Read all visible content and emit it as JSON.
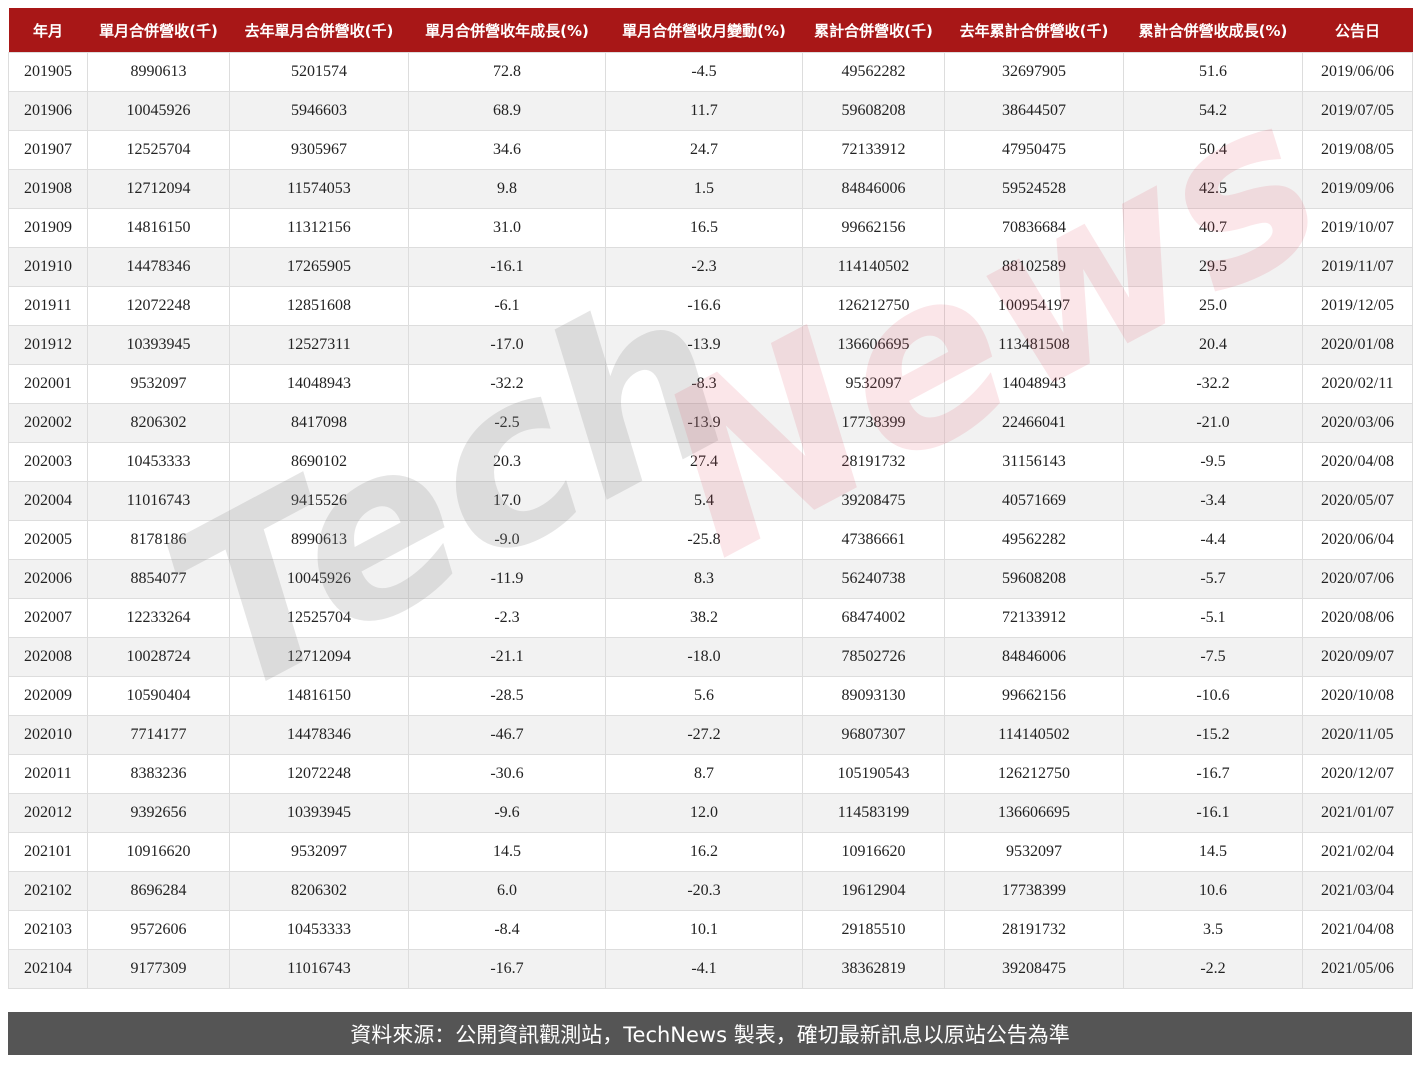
{
  "headers": [
    "年月",
    "單月合併營收(千)",
    "去年單月合併營收(千)",
    "單月合併營收年成長(%)",
    "單月合併營收月變動(%)",
    "累計合併營收(千)",
    "去年累計合併營收(千)",
    "累計合併營收成長(%)",
    "公告日"
  ],
  "rows": [
    [
      "201905",
      "8990613",
      "5201574",
      "72.8",
      "-4.5",
      "49562282",
      "32697905",
      "51.6",
      "2019/06/06"
    ],
    [
      "201906",
      "10045926",
      "5946603",
      "68.9",
      "11.7",
      "59608208",
      "38644507",
      "54.2",
      "2019/07/05"
    ],
    [
      "201907",
      "12525704",
      "9305967",
      "34.6",
      "24.7",
      "72133912",
      "47950475",
      "50.4",
      "2019/08/05"
    ],
    [
      "201908",
      "12712094",
      "11574053",
      "9.8",
      "1.5",
      "84846006",
      "59524528",
      "42.5",
      "2019/09/06"
    ],
    [
      "201909",
      "14816150",
      "11312156",
      "31.0",
      "16.5",
      "99662156",
      "70836684",
      "40.7",
      "2019/10/07"
    ],
    [
      "201910",
      "14478346",
      "17265905",
      "-16.1",
      "-2.3",
      "114140502",
      "88102589",
      "29.5",
      "2019/11/07"
    ],
    [
      "201911",
      "12072248",
      "12851608",
      "-6.1",
      "-16.6",
      "126212750",
      "100954197",
      "25.0",
      "2019/12/05"
    ],
    [
      "201912",
      "10393945",
      "12527311",
      "-17.0",
      "-13.9",
      "136606695",
      "113481508",
      "20.4",
      "2020/01/08"
    ],
    [
      "202001",
      "9532097",
      "14048943",
      "-32.2",
      "-8.3",
      "9532097",
      "14048943",
      "-32.2",
      "2020/02/11"
    ],
    [
      "202002",
      "8206302",
      "8417098",
      "-2.5",
      "-13.9",
      "17738399",
      "22466041",
      "-21.0",
      "2020/03/06"
    ],
    [
      "202003",
      "10453333",
      "8690102",
      "20.3",
      "27.4",
      "28191732",
      "31156143",
      "-9.5",
      "2020/04/08"
    ],
    [
      "202004",
      "11016743",
      "9415526",
      "17.0",
      "5.4",
      "39208475",
      "40571669",
      "-3.4",
      "2020/05/07"
    ],
    [
      "202005",
      "8178186",
      "8990613",
      "-9.0",
      "-25.8",
      "47386661",
      "49562282",
      "-4.4",
      "2020/06/04"
    ],
    [
      "202006",
      "8854077",
      "10045926",
      "-11.9",
      "8.3",
      "56240738",
      "59608208",
      "-5.7",
      "2020/07/06"
    ],
    [
      "202007",
      "12233264",
      "12525704",
      "-2.3",
      "38.2",
      "68474002",
      "72133912",
      "-5.1",
      "2020/08/06"
    ],
    [
      "202008",
      "10028724",
      "12712094",
      "-21.1",
      "-18.0",
      "78502726",
      "84846006",
      "-7.5",
      "2020/09/07"
    ],
    [
      "202009",
      "10590404",
      "14816150",
      "-28.5",
      "5.6",
      "89093130",
      "99662156",
      "-10.6",
      "2020/10/08"
    ],
    [
      "202010",
      "7714177",
      "14478346",
      "-46.7",
      "-27.2",
      "96807307",
      "114140502",
      "-15.2",
      "2020/11/05"
    ],
    [
      "202011",
      "8383236",
      "12072248",
      "-30.6",
      "8.7",
      "105190543",
      "126212750",
      "-16.7",
      "2020/12/07"
    ],
    [
      "202012",
      "9392656",
      "10393945",
      "-9.6",
      "12.0",
      "114583199",
      "136606695",
      "-16.1",
      "2021/01/07"
    ],
    [
      "202101",
      "10916620",
      "9532097",
      "14.5",
      "16.2",
      "10916620",
      "9532097",
      "14.5",
      "2021/02/04"
    ],
    [
      "202102",
      "8696284",
      "8206302",
      "6.0",
      "-20.3",
      "19612904",
      "17738399",
      "10.6",
      "2021/03/04"
    ],
    [
      "202103",
      "9572606",
      "10453333",
      "-8.4",
      "10.1",
      "29185510",
      "28191732",
      "3.5",
      "2021/04/08"
    ],
    [
      "202104",
      "9177309",
      "11016743",
      "-16.7",
      "-4.1",
      "38362819",
      "39208475",
      "-2.2",
      "2021/05/06"
    ]
  ],
  "watermark": {
    "part1": "Tech",
    "part2": "News"
  },
  "footer": "資料來源：公開資訊觀測站，TechNews 製表，確切最新訊息以原站公告為準",
  "colors": {
    "header": "#a81717",
    "footer": "#555555",
    "stripe": "#f2f2f2"
  }
}
